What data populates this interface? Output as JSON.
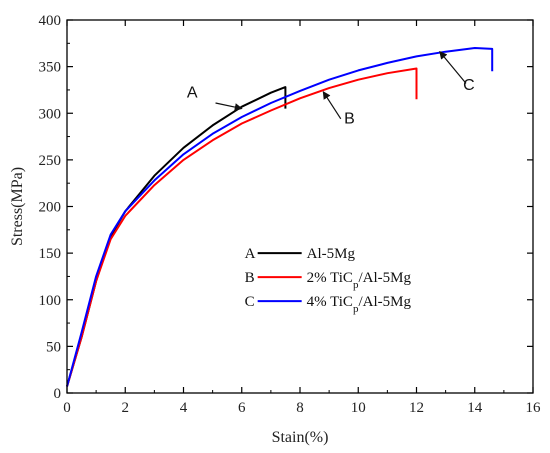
{
  "chart_data": {
    "type": "line",
    "title": "",
    "xlabel": "Stain(%)",
    "ylabel": "Stress(MPa)",
    "xlim": [
      0,
      16
    ],
    "ylim": [
      0,
      400
    ],
    "xticks": [
      0,
      2,
      4,
      6,
      8,
      10,
      12,
      14,
      16
    ],
    "yticks": [
      0,
      50,
      100,
      150,
      200,
      250,
      300,
      350,
      400
    ],
    "grid": false,
    "legend_position": "center-right",
    "series": [
      {
        "letter": "A",
        "name_main": "Al-5Mg",
        "name_sub": "",
        "name_tail": "",
        "color": "#000000",
        "x": [
          0,
          0.5,
          1.0,
          1.5,
          2.0,
          3.0,
          4.0,
          5.0,
          6.0,
          7.0,
          7.5,
          7.5
        ],
        "y": [
          7,
          60,
          120,
          168,
          195,
          233,
          263,
          287,
          307,
          322,
          328,
          305
        ]
      },
      {
        "letter": "B",
        "name_main": "2% TiC",
        "name_sub": "p",
        "name_tail": "/Al-5Mg",
        "color": "#ff0000",
        "x": [
          0,
          0.5,
          1.0,
          1.5,
          2.0,
          3.0,
          4.0,
          5.0,
          6.0,
          7.0,
          8.0,
          9.0,
          10.0,
          11.0,
          12.0,
          12.0
        ],
        "y": [
          7,
          60,
          120,
          165,
          190,
          223,
          250,
          271,
          289,
          303,
          316,
          327,
          336,
          343,
          348,
          315
        ]
      },
      {
        "letter": "C",
        "name_main": "4% TiC",
        "name_sub": "p",
        "name_tail": "/Al-5Mg",
        "color": "#0000ff",
        "x": [
          0,
          0.5,
          1.0,
          1.5,
          2.0,
          3.0,
          4.0,
          5.0,
          6.0,
          7.0,
          8.0,
          9.0,
          10.0,
          11.0,
          12.0,
          13.0,
          14.0,
          14.6,
          14.6
        ],
        "y": [
          7,
          65,
          125,
          170,
          195,
          228,
          256,
          278,
          296,
          311,
          324,
          336,
          346,
          354,
          361,
          366,
          370,
          369,
          345
        ]
      }
    ],
    "annotations": [
      {
        "label": "A",
        "text_at": [
          4.3,
          317
        ],
        "arrow_from": [
          5.1,
          311
        ],
        "arrow_to": [
          6.0,
          305
        ]
      },
      {
        "label": "B",
        "text_at": [
          9.7,
          289
        ],
        "arrow_from": [
          9.4,
          294
        ],
        "arrow_to": [
          8.8,
          323
        ]
      },
      {
        "label": "C",
        "text_at": [
          13.8,
          325
        ],
        "arrow_from": [
          13.7,
          332
        ],
        "arrow_to": [
          12.8,
          366
        ]
      }
    ]
  }
}
